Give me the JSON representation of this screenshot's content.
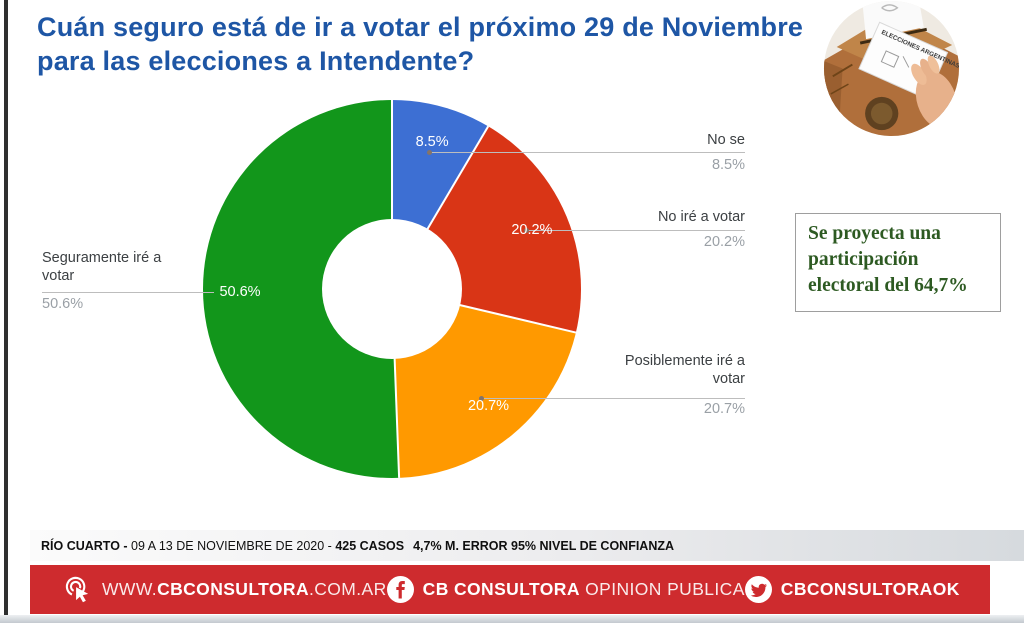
{
  "title": {
    "lines": [
      "Cuán seguro está de ir a votar el próximo 29 de Noviembre",
      "para las elecciones a Intendente?"
    ]
  },
  "chart_data": {
    "type": "pie",
    "subtype": "donut",
    "title": "Cuán seguro está de ir a votar el próximo 29 de Noviembre para las elecciones a Intendente?",
    "direction": "clockwise",
    "start_angle_deg": 0,
    "inner_radius_ratio": 0.37,
    "slices": [
      {
        "label": "No se",
        "value": 8.5,
        "pct": "8.5%",
        "color": "#3D6FD3"
      },
      {
        "label": "No iré a votar",
        "value": 20.2,
        "pct": "20.2%",
        "color": "#D93516"
      },
      {
        "label": "Posiblemente iré a votar",
        "value": 20.7,
        "pct": "20.7%",
        "color": "#FF9900"
      },
      {
        "label": "Seguramente iré a votar",
        "value": 50.6,
        "pct": "50.6%",
        "color": "#12961B"
      }
    ]
  },
  "projection_note": "Se proyecta una participación electoral del 64,7%",
  "methodology": {
    "location": "RÍO CUARTO - ",
    "period": "09 A 13 DE NOVIEMBRE DE 2020 - ",
    "cases": "425 CASOS",
    "stats": "4,7% M. ERROR 95% NIVEL DE CONFIANZA"
  },
  "footer": {
    "website": {
      "prefix": "WWW.",
      "brand": "CBCONSULTORA",
      "suffix": ".COM.AR"
    },
    "facebook": {
      "brand": "CB CONSULTORA",
      "rest": "OPINION PUBLICA"
    },
    "twitter": {
      "handle": "CBCONSULTORAOK"
    }
  },
  "photo": {
    "envelope_text": "ELECCIONES ARGENTINAS"
  },
  "colors": {
    "title_blue": "#1E56A5",
    "accent_red": "#CE2B2E",
    "note_green": "#2D5A22",
    "label_gray": "#9AA0A6"
  }
}
